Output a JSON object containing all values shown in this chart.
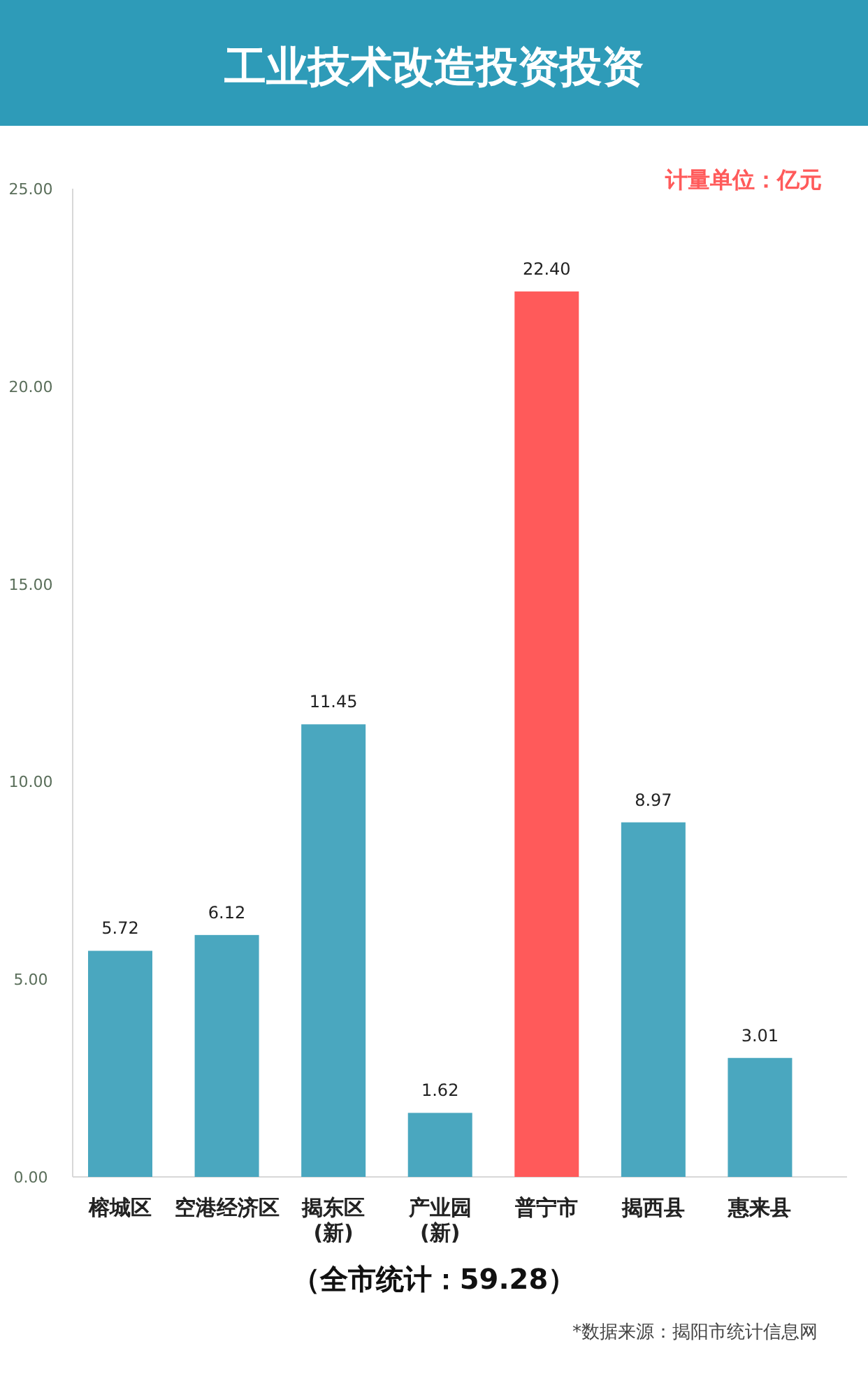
{
  "chart_data": {
    "type": "bar",
    "title": "工业技术改造投资投资",
    "subtitle": "计量单位：亿元",
    "categories": [
      "榕城区",
      "空港经济区",
      "揭东区\n(新)",
      "产业园\n(新)",
      "普宁市",
      "揭西县",
      "惠来县"
    ],
    "values": [
      5.72,
      6.12,
      11.45,
      1.62,
      22.4,
      8.97,
      3.01
    ],
    "colors": [
      "#4aa7bf",
      "#4aa7bf",
      "#4aa7bf",
      "#4aa7bf",
      "#ff5a5a",
      "#4aa7bf",
      "#4aa7bf"
    ],
    "value_labels": [
      "5.72",
      "6.12",
      "11.45",
      "1.62",
      "22.40",
      "8.97",
      "3.01"
    ],
    "ylim": [
      0,
      25
    ],
    "yticks": [
      {
        "value": 0,
        "label": "0.00"
      },
      {
        "value": 5,
        "label": "5.00"
      },
      {
        "value": 10,
        "label": "10.00"
      },
      {
        "value": 15,
        "label": "15.00"
      },
      {
        "value": 20,
        "label": "20.00"
      },
      {
        "value": 25,
        "label": "25.00"
      }
    ],
    "grid": false,
    "annotations": [
      "（全市统计：59.28）",
      "*数据来源：揭阳市统计信息网"
    ]
  }
}
